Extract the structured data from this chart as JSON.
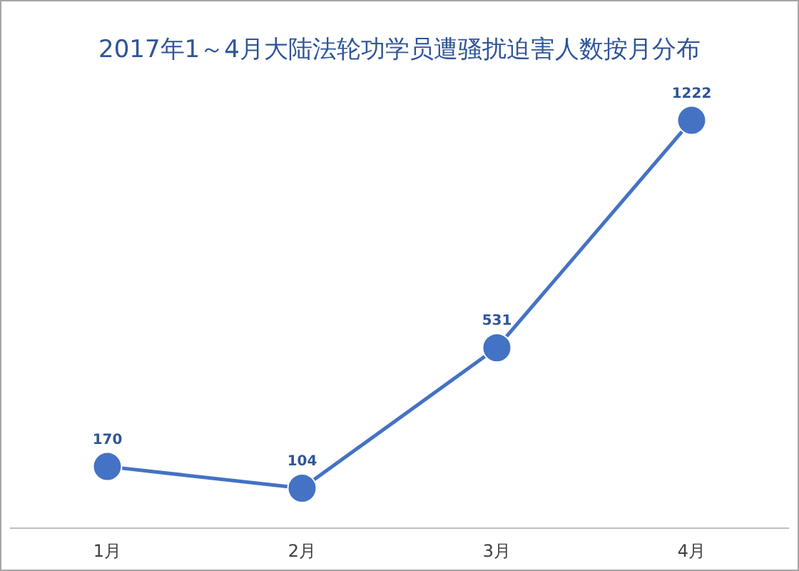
{
  "chart_data": {
    "type": "line",
    "title": "2017年1～4月大陆法轮功学员遭骚扰迫害人数按月分布",
    "categories": [
      "1月",
      "2月",
      "3月",
      "4月"
    ],
    "series": [
      {
        "color": "#4472c4",
        "values": [
          170,
          104,
          531,
          1222
        ]
      }
    ],
    "data_labels": true,
    "marker": "circle",
    "grid": false
  }
}
